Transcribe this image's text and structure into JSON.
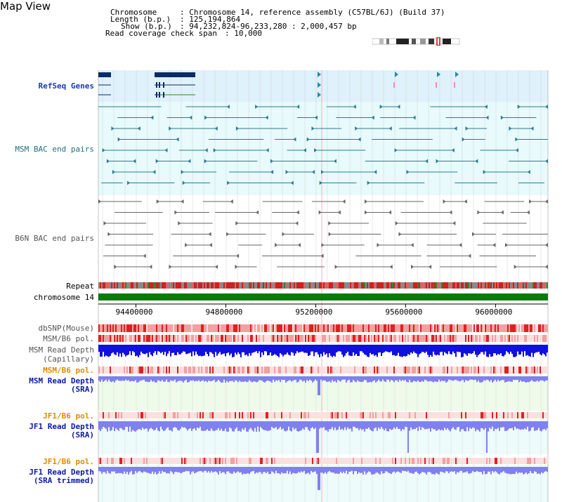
{
  "page": {
    "title": "Map View"
  },
  "info": {
    "chromosome_label": "Chromosome",
    "chromosome_value": ": Chromosome 14, reference assembly (C57BL/6J) (Build 37)",
    "length_label": "Length (b.p.)",
    "length_value": ": 125,194,864",
    "show_label": "Show (b.p.)",
    "show_value": ": 94,232,824-96,233,280 : 2,000,457 bp",
    "coverage_label": "Read coverage check span",
    "coverage_value": ": 10,000"
  },
  "tracks": {
    "refseq": "RefSeq Genes",
    "msm_bac": "MSM BAC end pairs",
    "b6n_bac": "B6N BAC end pairs",
    "repeat": "Repeat",
    "chromosome": "chromosome 14",
    "dbsnp": "dbSNP(Mouse)",
    "msm_b6_pol_1": "MSM/B6 pol.",
    "msm_depth_cap_1": "MSM Read Depth",
    "msm_depth_cap_2": "(Capillary)",
    "msm_b6_pol_2": "MSM/B6 pol.",
    "msm_depth_sra_1": "MSM Read Depth",
    "msm_depth_sra_2": "(SRA)",
    "jf1_b6_pol_1": "JF1/B6 pol.",
    "jf1_depth_sra_1": "JF1 Read Depth",
    "jf1_depth_sra_2": "(SRA)",
    "jf1_b6_pol_2": "JF1/B6 pol.",
    "jf1_depth_trim_1": "JF1 Read Depth",
    "jf1_depth_trim_2": "(SRA trimmed)"
  },
  "axis": {
    "ticks": [
      {
        "value": 94400000,
        "label": "94400000"
      },
      {
        "value": 94800000,
        "label": "94800000"
      },
      {
        "value": 95200000,
        "label": "95200000"
      },
      {
        "value": 95600000,
        "label": "95600000"
      },
      {
        "value": 96000000,
        "label": "96000000"
      }
    ],
    "range": [
      94232824,
      96233280
    ]
  },
  "colors": {
    "refseq_band": "#dff1fb",
    "msm_band": "#e8fafb",
    "gene": "#0b2a66",
    "msm_pair": "#2a7c90",
    "b6n_pair": "#666666",
    "chromosome_bar": "#0a7a0a",
    "depth_blue": "#1010e0",
    "depth_light": "#8080f0",
    "pol_red": "#e02020"
  }
}
